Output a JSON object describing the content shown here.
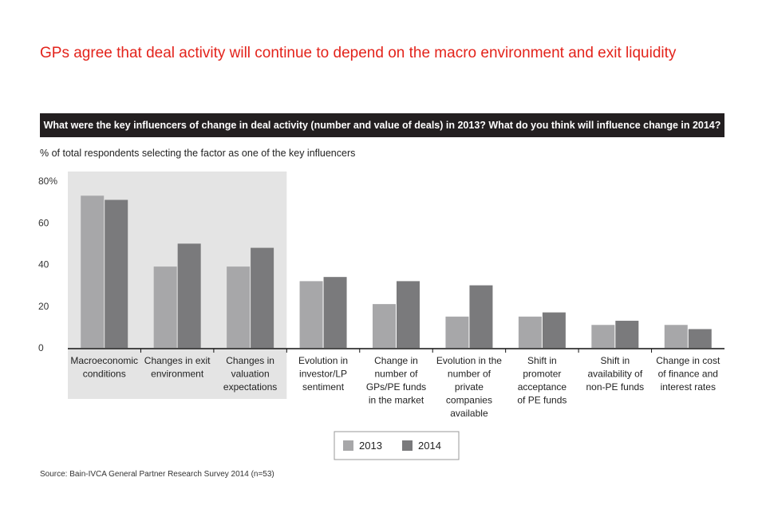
{
  "headline": "GPs agree that deal activity will continue to depend on the macro environment and exit liquidity",
  "question": "What were the key influencers of change in deal activity (number and value of deals) in 2013? What do you think will influence change in 2014?",
  "subtitle": "% of total respondents selecting the factor as one of the key influencers",
  "source": "Source: Bain-IVCA General Partner Research Survey 2014 (n=53)",
  "colors": {
    "headline": "#e3231b",
    "series_2013": "#a7a7a9",
    "series_2014": "#7a7a7c",
    "highlight_band": "#e4e4e4",
    "question_bar": "#231f20"
  },
  "chart_data": {
    "type": "bar",
    "title": "What were the key influencers of change in deal activity (number and value of deals) in 2013? What do you think will influence change in 2014?",
    "ylabel": "% of total respondents selecting the factor as one of the key influencers",
    "xlabel": "",
    "ylim": [
      0,
      80
    ],
    "yticks": [
      0,
      20,
      40,
      60,
      80
    ],
    "ytick_labels": [
      "0",
      "20",
      "40",
      "60",
      "80%"
    ],
    "highlighted_categories": [
      0,
      1,
      2
    ],
    "categories": [
      [
        "Macroeconomic",
        "conditions"
      ],
      [
        "Changes in exit",
        "environment"
      ],
      [
        "Changes in",
        "valuation",
        "expectations"
      ],
      [
        "Evolution in",
        "investor/LP",
        "sentiment"
      ],
      [
        "Change in",
        "number of",
        "GPs/PE funds",
        "in the market"
      ],
      [
        "Evolution in the",
        "number of",
        "private",
        "companies",
        "available"
      ],
      [
        "Shift in",
        "promoter",
        "acceptance",
        "of PE funds"
      ],
      [
        "Shift in",
        "availability of",
        "non-PE funds"
      ],
      [
        "Change in cost",
        "of finance and",
        "interest rates"
      ]
    ],
    "series": [
      {
        "name": "2013",
        "values": [
          73,
          39,
          39,
          32,
          21,
          15,
          15,
          11,
          11
        ]
      },
      {
        "name": "2014",
        "values": [
          71,
          50,
          48,
          34,
          32,
          30,
          17,
          13,
          9
        ]
      }
    ],
    "legend": [
      "2013",
      "2014"
    ],
    "legend_position": "bottom-center"
  }
}
